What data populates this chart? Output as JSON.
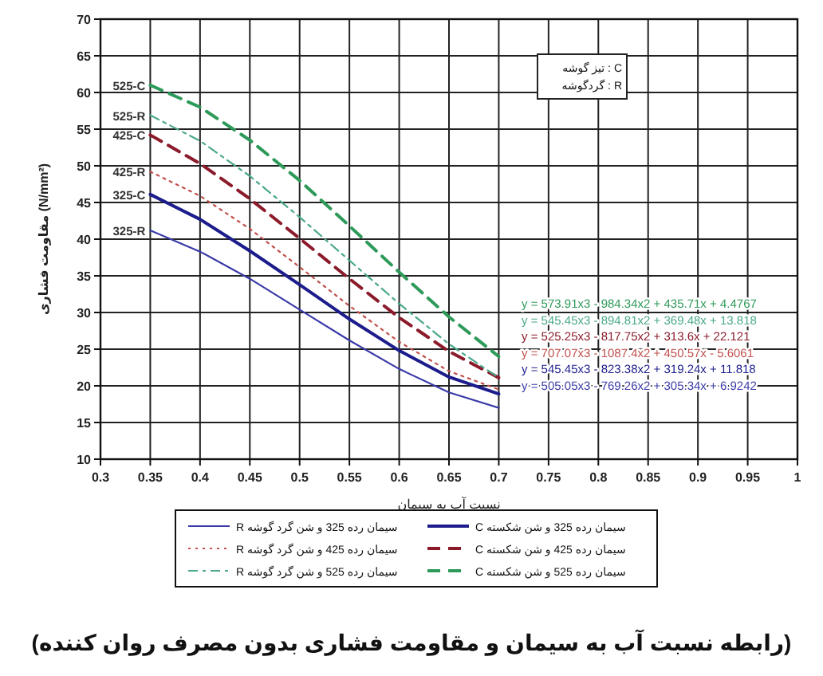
{
  "chart_data": {
    "type": "line",
    "title": "(رابطه نسبت آب به سیمان و مقاومت فشاری بدون مصرف روان کننده)",
    "xlabel": "نسبت آب به سیمان",
    "ylabel": "مقاومت فشاری (N/mm²)",
    "x": [
      0.35,
      0.4,
      0.45,
      0.5,
      0.55,
      0.6,
      0.65,
      0.7
    ],
    "series": [
      {
        "name": "سیمان رده 325 و شن گرد گوشه R",
        "color": "#3a3aa8",
        "line_style": "solid",
        "values": [
          41.2,
          38.3,
          34.6,
          30.4,
          26.2,
          22.3,
          19.1,
          17.0
        ]
      },
      {
        "name": "سیمان رده 325 و شن شکسته C",
        "color": "#1c1c8c",
        "line_style": "solid",
        "values": [
          46.1,
          42.7,
          38.4,
          33.8,
          29.1,
          24.8,
          21.2,
          18.9
        ]
      },
      {
        "name": "سیمان رده 425 و شن گرد گوشه R",
        "color": "#c0504d",
        "line_style": "dotted",
        "values": [
          49.2,
          45.9,
          41.4,
          36.2,
          30.9,
          26.0,
          22.0,
          19.5
        ]
      },
      {
        "name": "سیمان رده 425 و شن شکسته C",
        "color": "#8b1a2a",
        "line_style": "dashed",
        "values": [
          54.2,
          50.3,
          45.5,
          40.1,
          34.6,
          29.3,
          24.7,
          21.1
        ]
      },
      {
        "name": "سیمان رده 525 و شن گرد گوشه R",
        "color": "#4aa88a",
        "line_style": "dashed",
        "values": [
          56.9,
          53.4,
          48.6,
          43.0,
          37.1,
          31.2,
          25.7,
          21.1
        ]
      },
      {
        "name": "سیمان رده 525 و شن شکسته C",
        "color": "#2e9a5a",
        "line_style": "dashed",
        "values": [
          61.0,
          58.0,
          53.5,
          48.0,
          41.8,
          35.5,
          29.4,
          24.0
        ]
      }
    ],
    "xlim": [
      0.3,
      1
    ],
    "xticks": [
      0.3,
      0.35,
      0.4,
      0.45,
      0.5,
      0.55,
      0.6,
      0.65,
      0.7,
      0.75,
      0.8,
      0.85,
      0.9,
      0.95,
      1
    ],
    "ylim": [
      10,
      70
    ],
    "yticks": [
      10,
      15,
      20,
      25,
      30,
      35,
      40,
      45,
      50,
      55,
      60,
      65,
      70
    ],
    "grid": true,
    "legend": "bottom",
    "marker": "none",
    "annotations": [
      "C : تیز گوشه",
      "R : گردگوشه",
      "y = 573.91x3 - 984.34x2 + 435.71x + 4.4767",
      "y = 545.45x3 - 894.81x2 + 369.48x + 13.818",
      "y = 525.25x3 - 817.75x2 + 313.6x + 22.121",
      "y = 707.07x3 - 1087.4x2 + 450.57x - 5.6061",
      "y = 545.45x3 - 823.38x2 + 319.24x + 11.818",
      "y = 505.05x3 - 769.26x2 + 305.34x + 6.9242",
      "525-C",
      "525-R",
      "425-C",
      "425-R",
      "325-C",
      "325-R"
    ]
  }
}
